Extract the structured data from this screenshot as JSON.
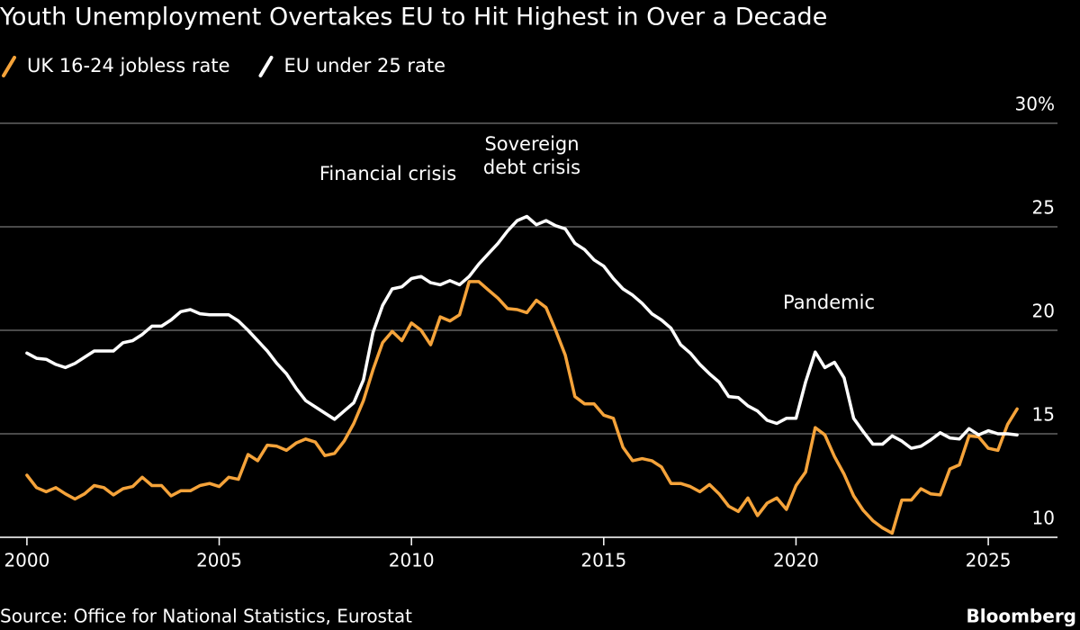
{
  "chart_data": {
    "type": "line",
    "title": "Youth Unemployment Overtakes EU to Hit Highest in Over a Decade",
    "source": "Source: Office for National Statistics, Eurostat",
    "brand": "Bloomberg",
    "annotations": [
      "Financial crisis",
      "Sovereign debt crisis",
      "Pandemic"
    ],
    "x": [
      2000,
      2000.25,
      2000.5,
      2000.75,
      2001,
      2001.25,
      2001.5,
      2001.75,
      2002,
      2002.25,
      2002.5,
      2002.75,
      2003,
      2003.25,
      2003.5,
      2003.75,
      2004,
      2004.25,
      2004.5,
      2004.75,
      2005,
      2005.25,
      2005.5,
      2005.75,
      2006,
      2006.25,
      2006.5,
      2006.75,
      2007,
      2007.25,
      2007.5,
      2007.75,
      2008,
      2008.25,
      2008.5,
      2008.75,
      2009,
      2009.25,
      2009.5,
      2009.75,
      2010,
      2010.25,
      2010.5,
      2010.75,
      2011,
      2011.25,
      2011.5,
      2011.75,
      2012,
      2012.25,
      2012.5,
      2012.75,
      2013,
      2013.25,
      2013.5,
      2013.75,
      2014,
      2014.25,
      2014.5,
      2014.75,
      2015,
      2015.25,
      2015.5,
      2015.75,
      2016,
      2016.25,
      2016.5,
      2016.75,
      2017,
      2017.25,
      2017.5,
      2017.75,
      2018,
      2018.25,
      2018.5,
      2018.75,
      2019,
      2019.25,
      2019.5,
      2019.75,
      2020,
      2020.25,
      2020.5,
      2020.75,
      2021,
      2021.25,
      2021.5,
      2021.75,
      2022,
      2022.25,
      2022.5,
      2022.75,
      2023,
      2023.25,
      2023.5,
      2023.75,
      2024,
      2024.25,
      2024.5,
      2024.75,
      2025,
      2025.25,
      2025.5,
      2025.75
    ],
    "series": [
      {
        "name": "UK 16-24 jobless rate",
        "color": "#f5a33a",
        "values": [
          13.0,
          12.4,
          12.2,
          12.4,
          12.1,
          11.85,
          12.1,
          12.5,
          12.4,
          12.05,
          12.35,
          12.45,
          12.9,
          12.5,
          12.5,
          12.0,
          12.25,
          12.25,
          12.5,
          12.6,
          12.45,
          12.9,
          12.8,
          14.0,
          13.7,
          14.45,
          14.4,
          14.2,
          14.55,
          14.75,
          14.6,
          13.95,
          14.05,
          14.65,
          15.5,
          16.6,
          18.1,
          19.4,
          19.95,
          19.5,
          20.35,
          20.0,
          19.3,
          20.65,
          20.45,
          20.75,
          22.35,
          22.35,
          21.95,
          21.55,
          21.05,
          21.0,
          20.85,
          21.45,
          21.1,
          20.0,
          18.8,
          16.8,
          16.45,
          16.45,
          15.9,
          15.75,
          14.35,
          13.7,
          13.8,
          13.7,
          13.4,
          12.6,
          12.6,
          12.45,
          12.2,
          12.55,
          12.1,
          11.5,
          11.25,
          11.9,
          11.05,
          11.65,
          11.9,
          11.35,
          12.5,
          13.15,
          15.3,
          14.95,
          13.9,
          13.05,
          12.0,
          11.3,
          10.8,
          10.45,
          10.2,
          11.8,
          11.8,
          12.35,
          12.1,
          12.05,
          13.3,
          13.5,
          14.9,
          14.85,
          14.3,
          14.2,
          15.45,
          16.2
        ]
      },
      {
        "name": "EU under 25 rate",
        "color": "#ffffff",
        "values": [
          18.9,
          18.65,
          18.6,
          18.35,
          18.2,
          18.4,
          18.7,
          19.0,
          19.0,
          19.0,
          19.4,
          19.5,
          19.8,
          20.2,
          20.2,
          20.5,
          20.9,
          21.0,
          20.8,
          20.75,
          20.75,
          20.75,
          20.45,
          20.0,
          19.5,
          19.0,
          18.4,
          17.9,
          17.2,
          16.6,
          16.3,
          16.0,
          15.7,
          16.1,
          16.5,
          17.6,
          19.9,
          21.2,
          22.0,
          22.1,
          22.5,
          22.6,
          22.3,
          22.2,
          22.4,
          22.2,
          22.6,
          23.2,
          23.7,
          24.2,
          24.8,
          25.3,
          25.5,
          25.1,
          25.3,
          25.05,
          24.9,
          24.2,
          23.9,
          23.4,
          23.1,
          22.5,
          22.0,
          21.7,
          21.3,
          20.8,
          20.5,
          20.1,
          19.3,
          18.9,
          18.35,
          17.9,
          17.5,
          16.8,
          16.75,
          16.35,
          16.1,
          15.65,
          15.5,
          15.75,
          15.75,
          17.5,
          18.95,
          18.2,
          18.45,
          17.7,
          15.75,
          15.1,
          14.5,
          14.5,
          14.9,
          14.65,
          14.3,
          14.4,
          14.7,
          15.05,
          14.8,
          14.75,
          15.25,
          14.95,
          15.15,
          15.0,
          15.0,
          14.95
        ]
      }
    ],
    "xlim": [
      1999.3,
      2026.8
    ],
    "xticks": [
      2000,
      2005,
      2010,
      2015,
      2020,
      2025
    ],
    "ylim": [
      10,
      30
    ],
    "yticks": [
      10,
      15,
      20,
      25,
      {
        "value": 30,
        "label": "30%"
      }
    ],
    "grid": true
  }
}
